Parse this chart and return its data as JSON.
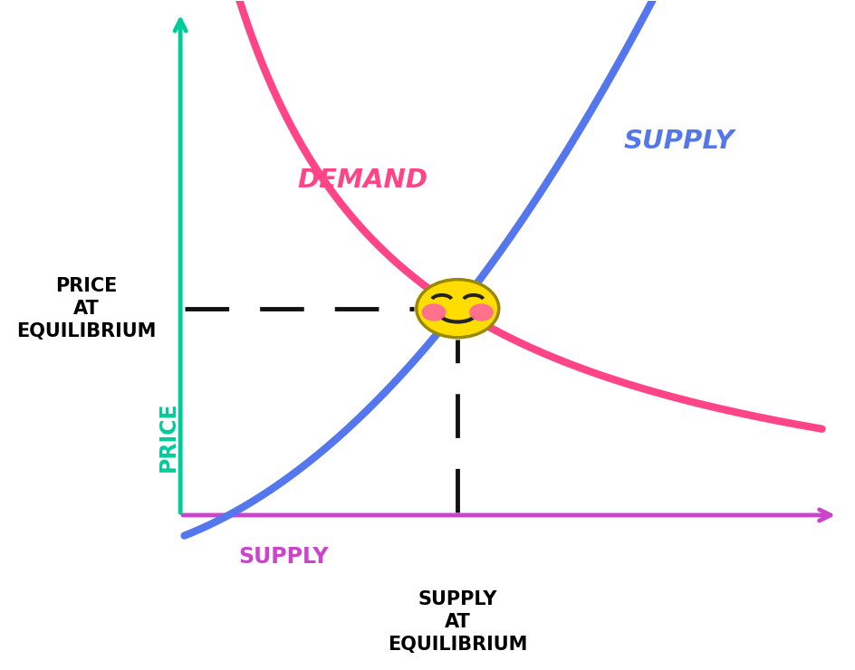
{
  "background_color": "#ffffff",
  "x_axis_color": "#cc44cc",
  "y_axis_color": "#00cc99",
  "demand_color": "#ff4488",
  "supply_color": "#5577ee",
  "dashed_color": "#111111",
  "demand_label": "DEMAND",
  "supply_label_curve": "SUPPLY",
  "supply_label_axis": "SUPPLY",
  "price_label": "PRICE",
  "price_eq_label": "PRICE\nAT\nEQUILIBRIUM",
  "supply_eq_label": "SUPPLY\nAT\nEQUILIBRIUM",
  "face_color": "#ffdd00",
  "face_edge_color": "#998800",
  "cheek_color": "#ff6699",
  "smile_color": "#222222",
  "eye_color": "#222222",
  "xlim": [
    0,
    10
  ],
  "ylim": [
    0,
    10
  ]
}
